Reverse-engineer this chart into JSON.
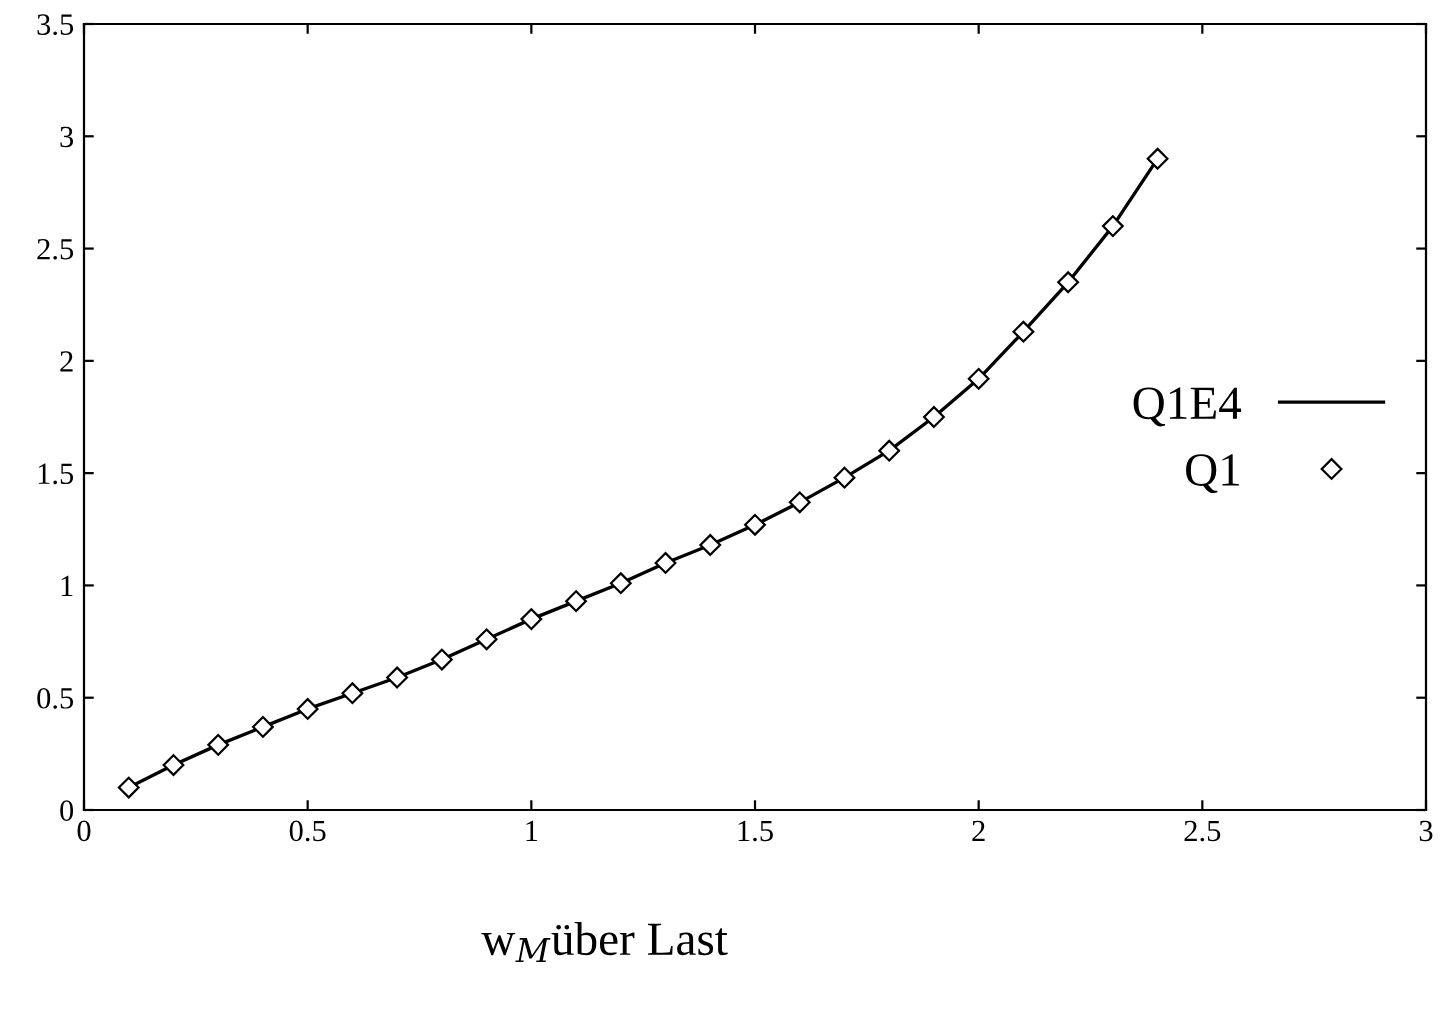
{
  "chart_data": {
    "type": "line",
    "xlabel": "w$_{M}$über Last",
    "x": [
      0.1,
      0.2,
      0.3,
      0.4,
      0.5,
      0.6,
      0.7,
      0.8,
      0.9,
      1.0,
      1.1,
      1.2,
      1.3,
      1.4,
      1.5,
      1.6,
      1.7,
      1.8,
      1.9,
      2.0,
      2.1,
      2.2,
      2.3,
      2.4
    ],
    "series": [
      {
        "name": "Q1E4",
        "color": "#000000",
        "marker": "none",
        "line_style": "solid",
        "values": [
          0.1,
          0.2,
          0.29,
          0.37,
          0.45,
          0.52,
          0.59,
          0.67,
          0.76,
          0.85,
          0.93,
          1.01,
          1.1,
          1.18,
          1.27,
          1.37,
          1.48,
          1.6,
          1.75,
          1.92,
          2.13,
          2.35,
          2.6,
          2.9
        ]
      },
      {
        "name": "Q1",
        "type": "scatter",
        "color": "#000000",
        "marker": "diamond",
        "values": [
          0.1,
          0.2,
          0.29,
          0.37,
          0.45,
          0.52,
          0.59,
          0.67,
          0.76,
          0.85,
          0.93,
          1.01,
          1.1,
          1.18,
          1.27,
          1.37,
          1.48,
          1.6,
          1.75,
          1.92,
          2.13,
          2.35,
          2.6,
          2.9
        ]
      }
    ],
    "xlim": [
      0,
      3
    ],
    "xticks": [
      0,
      0.5,
      1,
      1.5,
      2,
      2.5,
      3
    ],
    "ylim": [
      0,
      3.5
    ],
    "yticks": [
      0,
      0.5,
      1,
      1.5,
      2,
      2.5,
      3,
      3.5
    ],
    "grid": false,
    "legend": "right"
  }
}
